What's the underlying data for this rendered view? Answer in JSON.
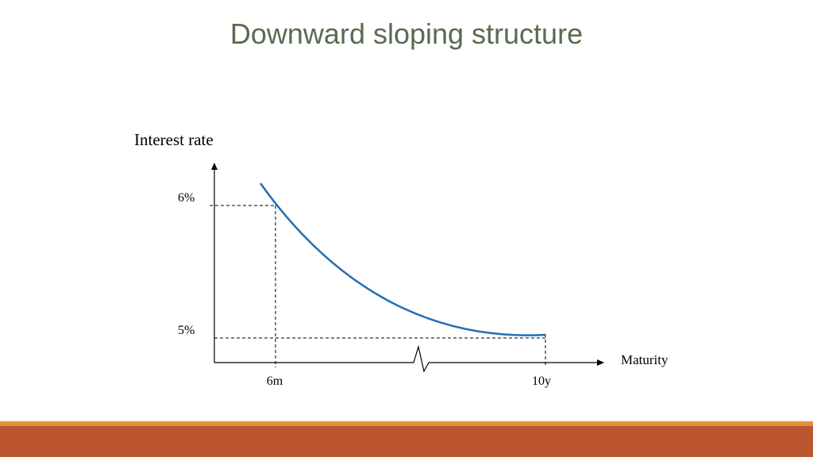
{
  "slide": {
    "title": "Downward sloping structure"
  },
  "colors": {
    "title": "#5a6b4f",
    "curve": "#1f6fb5",
    "footer_band": "#bb5630",
    "footer_stripe": "#e2913b"
  },
  "chart_data": {
    "type": "line",
    "title": "Downward sloping structure",
    "xlabel": "Maturity",
    "ylabel": "Interest rate",
    "x_ticks": [
      "6m",
      "10y"
    ],
    "y_ticks": [
      "6%",
      "5%"
    ],
    "x_axis_break": true,
    "grid": false,
    "reference_lines": [
      {
        "x": "6m",
        "y": "6%"
      },
      {
        "x": "10y",
        "y": "5%"
      }
    ],
    "series": [
      {
        "x": [
          "6m",
          "10y"
        ],
        "y": [
          6,
          5
        ],
        "shape": "decreasing convex curve"
      }
    ]
  }
}
